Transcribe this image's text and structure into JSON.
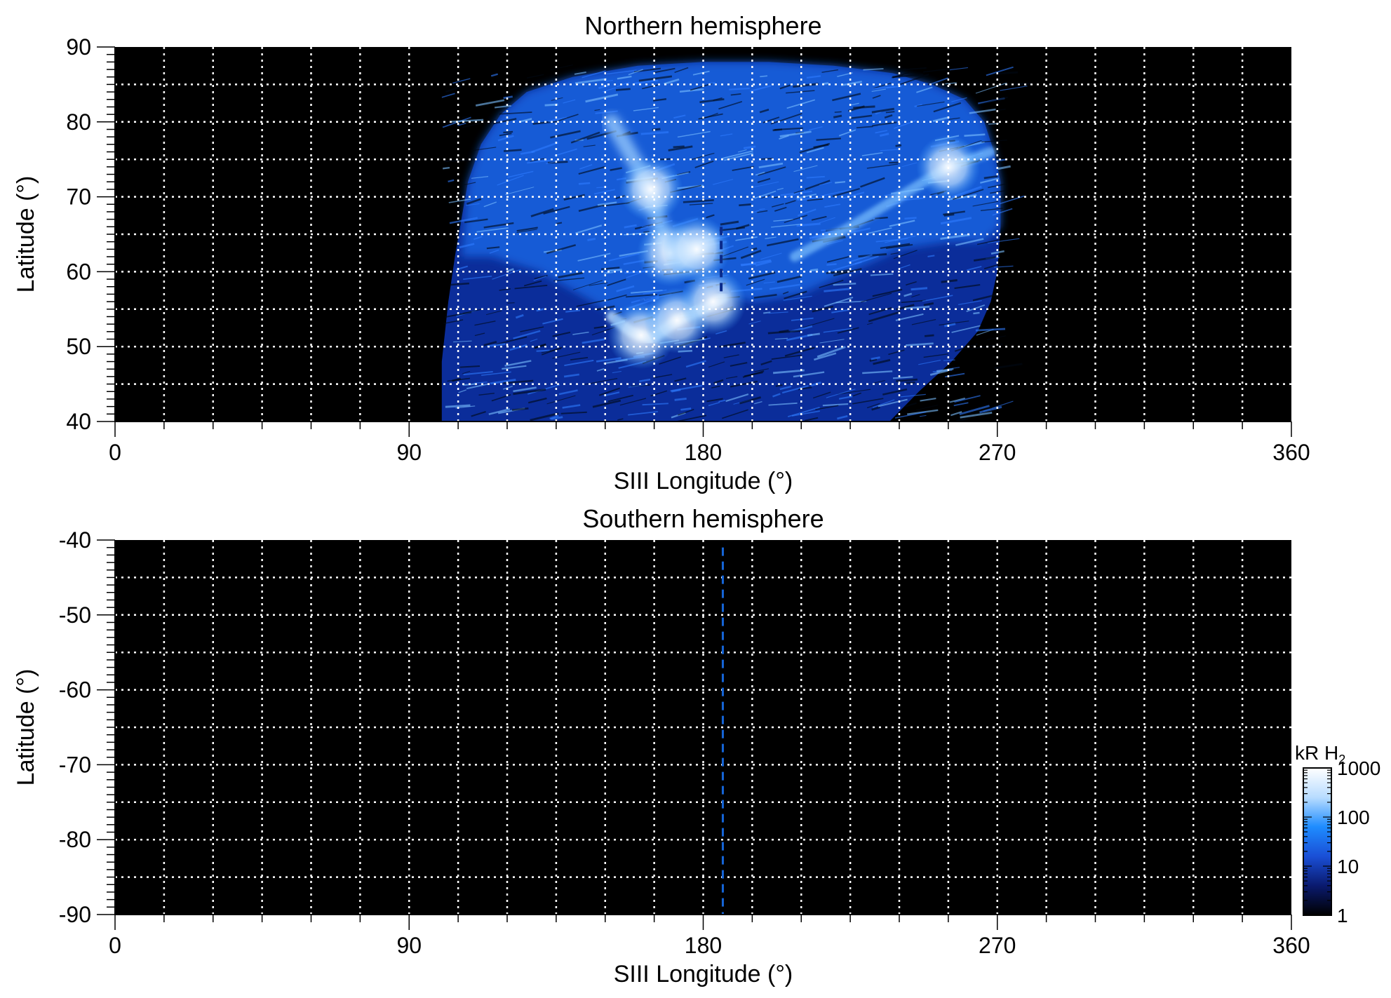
{
  "chart_data": [
    {
      "type": "heatmap",
      "title": "Northern hemisphere",
      "xlabel": "SIII Longitude (°)",
      "ylabel": "Latitude (°)",
      "xlim": [
        0,
        360
      ],
      "ylim": [
        40,
        90
      ],
      "xticks": [
        "0",
        "90",
        "180",
        "270",
        "360"
      ],
      "yticks": [
        "40",
        "50",
        "60",
        "70",
        "80",
        "90"
      ],
      "grid": true,
      "background": "#000000",
      "marker_line": {
        "longitude": 185.5,
        "style": "dashed",
        "lat_range": [
          57,
          66
        ]
      },
      "emission_region": {
        "lon_range": [
          100,
          271
        ],
        "lat_range": [
          40,
          88
        ]
      },
      "main_oval": [
        {
          "lon": 152,
          "lat": 80
        },
        {
          "lon": 160,
          "lat": 74
        },
        {
          "lon": 165,
          "lat": 69
        },
        {
          "lon": 168,
          "lat": 64
        },
        {
          "lon": 172,
          "lat": 62
        },
        {
          "lon": 178,
          "lat": 63
        },
        {
          "lon": 182,
          "lat": 64
        }
      ],
      "bright_spots": [
        {
          "lon": 170,
          "lat": 62.5,
          "kR": 1000
        },
        {
          "lon": 178,
          "lat": 63,
          "kR": 1000
        },
        {
          "lon": 161,
          "lat": 51.5,
          "kR": 1000
        },
        {
          "lon": 172,
          "lat": 53.5,
          "kR": 800
        },
        {
          "lon": 183,
          "lat": 56,
          "kR": 900
        },
        {
          "lon": 164,
          "lat": 71,
          "kR": 600
        },
        {
          "lon": 255,
          "lat": 74,
          "kR": 600
        }
      ]
    },
    {
      "type": "heatmap",
      "title": "Southern hemisphere",
      "xlabel": "SIII Longitude (°)",
      "ylabel": "Latitude (°)",
      "xlim": [
        0,
        360
      ],
      "ylim": [
        -90,
        -40
      ],
      "xticks": [
        "0",
        "90",
        "180",
        "270",
        "360"
      ],
      "yticks": [
        "-40",
        "-50",
        "-60",
        "-70",
        "-80",
        "-90"
      ],
      "grid": true,
      "background": "#000000",
      "marker_line": {
        "longitude": 186,
        "style": "dashed",
        "lat_range": [
          -90,
          -41
        ]
      }
    }
  ],
  "colorbar": {
    "label": "kR H",
    "label_subscript": "2",
    "scale": "log",
    "range": [
      1,
      1000
    ],
    "ticks": [
      "1",
      "10",
      "100",
      "1000"
    ],
    "colors": [
      "#000000",
      "#0a1a6e",
      "#1a4fd6",
      "#1e8cff",
      "#b8dcff",
      "#ffffff"
    ]
  },
  "colors": {
    "grid": "#ffffff",
    "marker_line": "#1565d8",
    "plot_bg": "#000000"
  }
}
